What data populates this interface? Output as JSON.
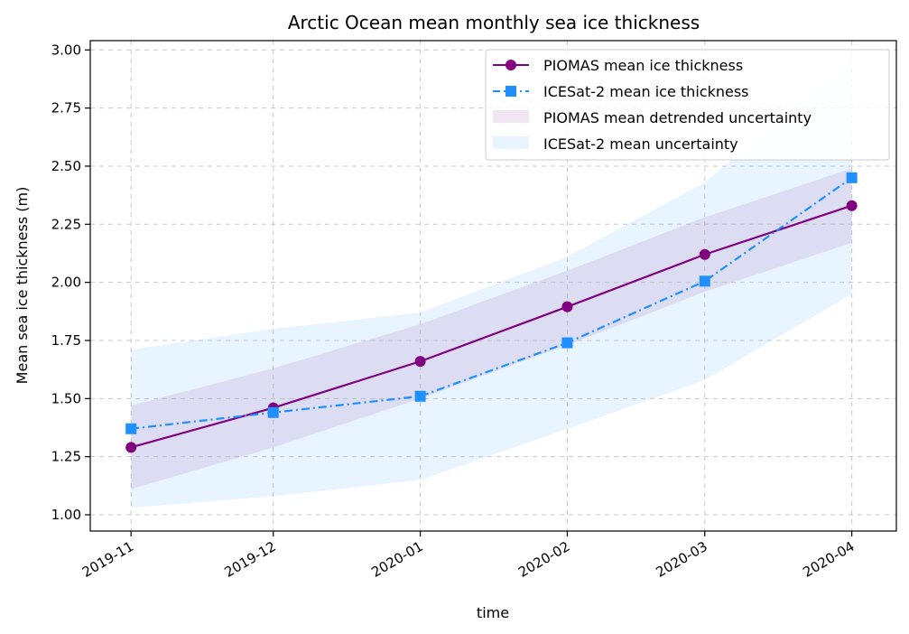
{
  "chart_data": {
    "type": "line",
    "title": "Arctic Ocean mean monthly sea ice thickness",
    "xlabel": "time",
    "ylabel": "Mean sea ice thickness (m)",
    "categories": [
      "2019-11",
      "2019-12",
      "2020-01",
      "2020-02",
      "2020-03",
      "2020-04"
    ],
    "x_days": [
      0,
      30,
      61,
      92,
      121,
      152
    ],
    "ylim": [
      0.93,
      3.04
    ],
    "yticks": [
      "1.00",
      "1.25",
      "1.50",
      "1.75",
      "2.00",
      "2.25",
      "2.50",
      "2.75",
      "3.00"
    ],
    "grid": true,
    "legend_position": "top-right",
    "series": [
      {
        "name": "PIOMAS mean ice thickness",
        "values": [
          1.29,
          1.46,
          1.66,
          1.895,
          2.12,
          2.33
        ],
        "color": "#800080",
        "marker": "circle",
        "line_style": "solid"
      },
      {
        "name": "ICESat-2 mean ice thickness",
        "values": [
          1.37,
          1.44,
          1.51,
          1.74,
          2.005,
          2.45
        ],
        "color": "#1e90ff",
        "marker": "square",
        "line_style": "dash-dot"
      }
    ],
    "bands": [
      {
        "name": "PIOMAS mean detrended uncertainty",
        "lower": [
          1.11,
          1.29,
          1.5,
          1.73,
          1.96,
          2.17
        ],
        "upper": [
          1.47,
          1.63,
          1.82,
          2.05,
          2.28,
          2.49
        ],
        "color": "#800080",
        "opacity": 0.1
      },
      {
        "name": "ICESat-2 mean uncertainty",
        "lower": [
          1.03,
          1.08,
          1.15,
          1.37,
          1.58,
          1.95
        ],
        "upper": [
          1.71,
          1.8,
          1.87,
          2.11,
          2.43,
          2.95
        ],
        "color": "#1e90ff",
        "opacity": 0.1
      }
    ]
  }
}
